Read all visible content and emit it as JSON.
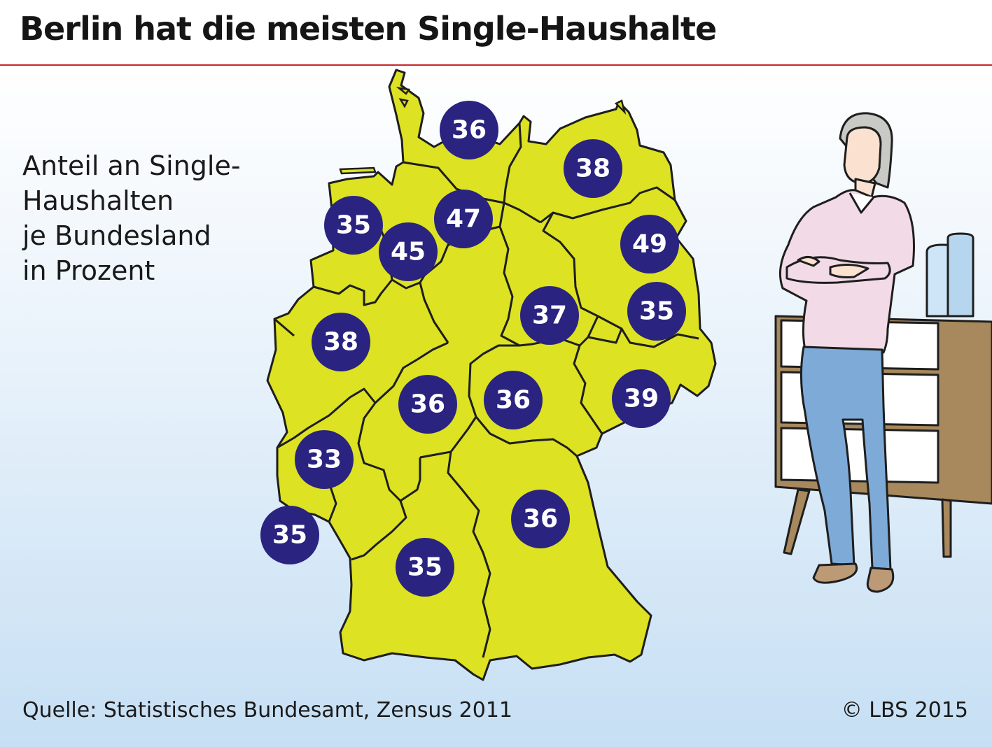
{
  "title": "Berlin hat die meisten Single-Haushalte",
  "subtitle_lines": [
    "Anteil an Single-",
    "Haushalten",
    "je Bundesland",
    "in Prozent"
  ],
  "source": "Quelle: Statistisches Bundesamt, Zensus 2011",
  "copyright": "© LBS 2015",
  "colors": {
    "land_fill": "#dde222",
    "border": "#1e1e1e",
    "badge": "#2a2380",
    "badge_text": "#ffffff",
    "header_rule": "#c8272d"
  },
  "chart_data": {
    "type": "choropleth-map",
    "unit": "%",
    "regions": [
      {
        "value": "36"
      },
      {
        "value": "38"
      },
      {
        "value": "35"
      },
      {
        "value": "47"
      },
      {
        "value": "45"
      },
      {
        "value": "49"
      },
      {
        "value": "37"
      },
      {
        "value": "35"
      },
      {
        "value": "38"
      },
      {
        "value": "36"
      },
      {
        "value": "36"
      },
      {
        "value": "39"
      },
      {
        "value": "33"
      },
      {
        "value": "36"
      },
      {
        "value": "35"
      },
      {
        "value": "35"
      }
    ]
  }
}
